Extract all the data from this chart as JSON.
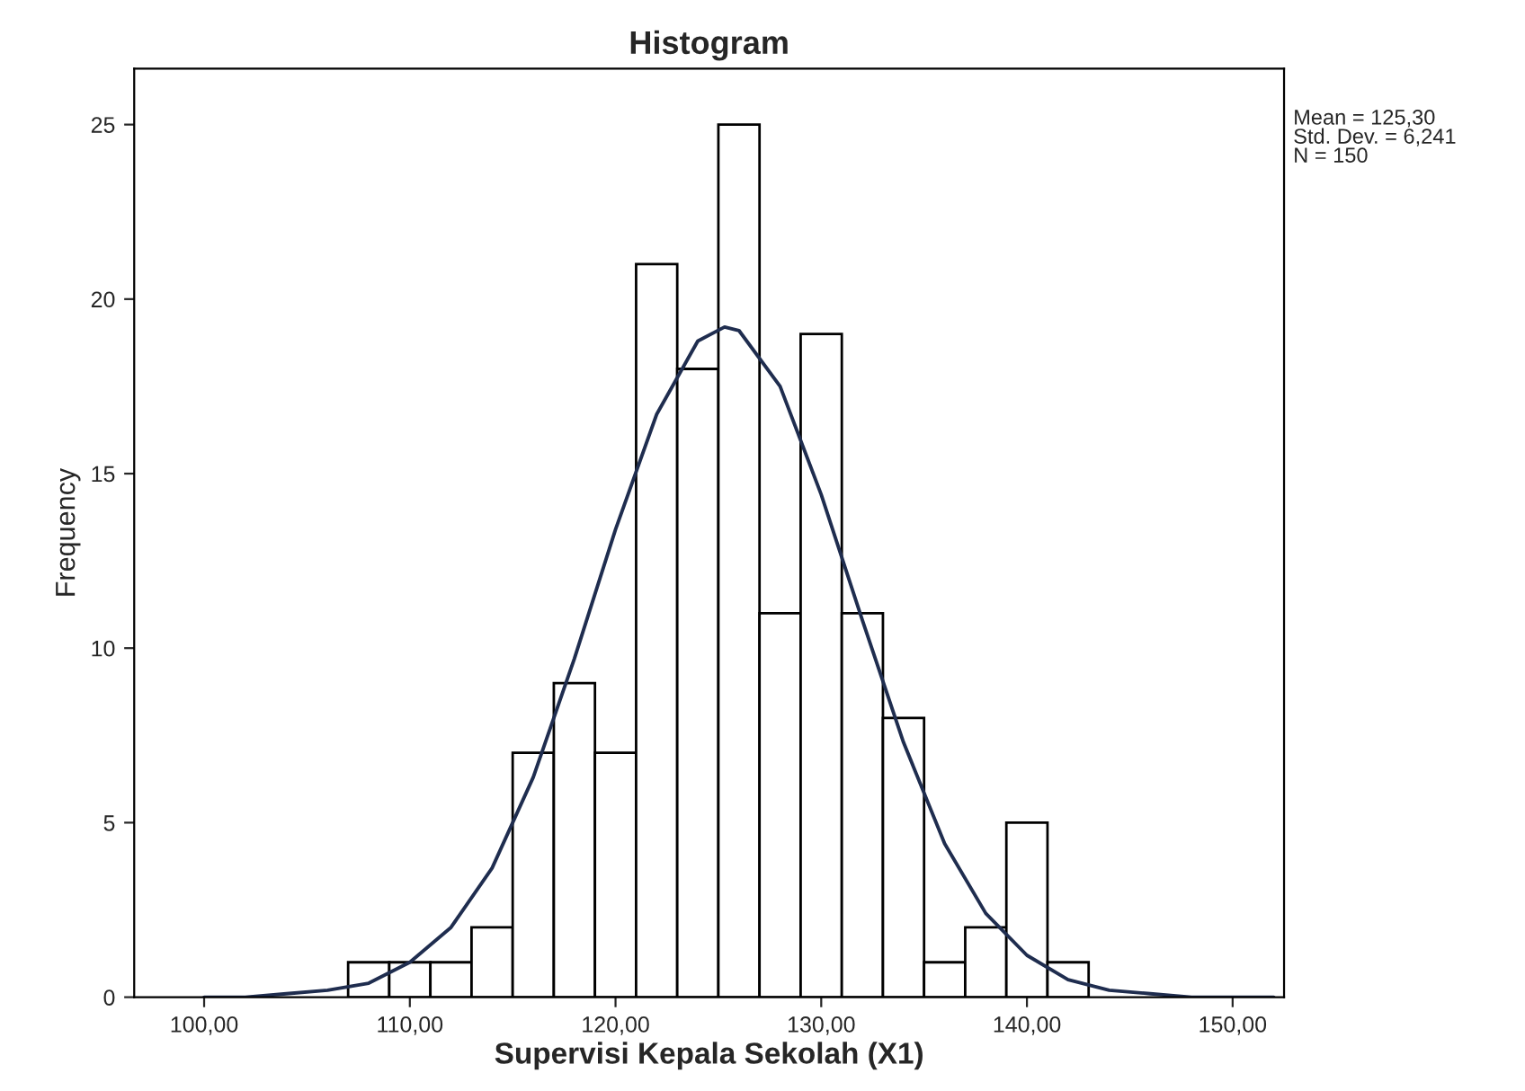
{
  "chart_data": {
    "type": "histogram",
    "title": "Histogram",
    "xlabel": "Supervisi Kepala Sekolah (X1)",
    "ylabel": "Frequency",
    "bins": [
      107,
      109,
      111,
      113,
      115,
      117,
      119,
      121,
      123,
      125,
      127,
      129,
      131,
      133,
      135,
      137,
      139,
      141,
      143
    ],
    "values": [
      1,
      1,
      1,
      2,
      7,
      9,
      7,
      21,
      18,
      25,
      11,
      19,
      11,
      8,
      1,
      2,
      5,
      1
    ],
    "color": "#ffffff",
    "series": [
      {
        "type": "line",
        "color": "#1f2d4f",
        "x": [
          100,
          102,
          104,
          106,
          108,
          110,
          112,
          114,
          116,
          118,
          120,
          122,
          124,
          125.3,
          126,
          128,
          130,
          132,
          134,
          136,
          138,
          140,
          142,
          144,
          146,
          148,
          150,
          152
        ],
        "values": [
          0.0,
          0.0,
          0.1,
          0.2,
          0.4,
          1.0,
          2.0,
          3.7,
          6.3,
          9.7,
          13.4,
          16.7,
          18.8,
          19.2,
          19.1,
          17.5,
          14.4,
          10.8,
          7.3,
          4.4,
          2.4,
          1.2,
          0.5,
          0.2,
          0.1,
          0.0,
          0.0,
          0.0
        ]
      }
    ],
    "xlim": [
      96.6,
      152.5
    ],
    "ylim": [
      0,
      26.6
    ],
    "xticks": [
      {
        "value": 100,
        "label": "100,00"
      },
      {
        "value": 110,
        "label": "110,00"
      },
      {
        "value": 120,
        "label": "120,00"
      },
      {
        "value": 130,
        "label": "130,00"
      },
      {
        "value": 140,
        "label": "140,00"
      },
      {
        "value": 150,
        "label": "150,00"
      }
    ],
    "yticks": [
      0,
      5,
      10,
      15,
      20,
      25
    ],
    "annotations": [
      "Mean = 125,30\nStd. Dev. = 6,241\nN = 150"
    ],
    "grid": false,
    "legend": false
  }
}
